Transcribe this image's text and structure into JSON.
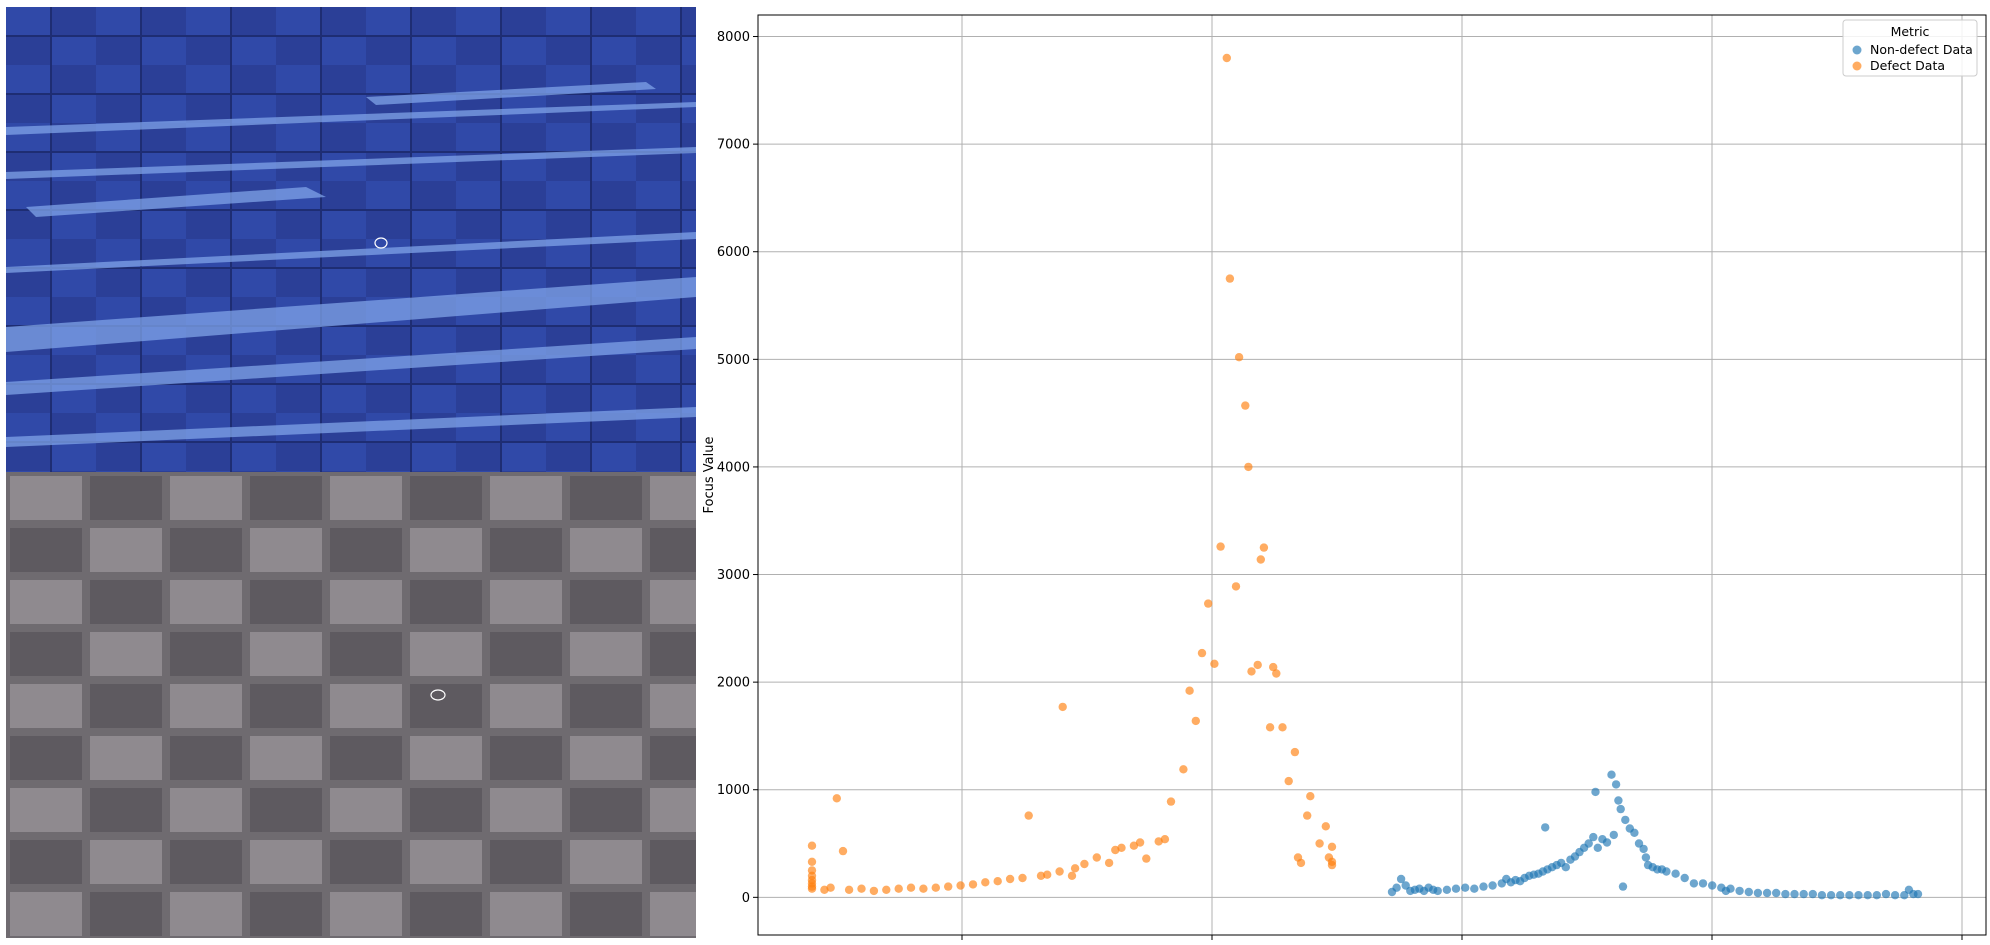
{
  "images": {
    "top": {
      "description_color": "#3553b8"
    },
    "bottom": {
      "description_color": "#9a9497"
    }
  },
  "chart_data": {
    "type": "scatter",
    "title": "",
    "xlabel": "",
    "ylabel": "Focus Value",
    "ylim": [
      -350,
      8200
    ],
    "y_ticks": [
      0,
      1000,
      2000,
      3000,
      4000,
      5000,
      6000,
      7000,
      8000
    ],
    "grid": true,
    "legend": {
      "title": "Metric",
      "placement": "top-right"
    },
    "series": [
      {
        "name": "Non-defect Data",
        "color": "#1f77b4",
        "points": [
          [
            0,
            50
          ],
          [
            1,
            90
          ],
          [
            2,
            170
          ],
          [
            3,
            110
          ],
          [
            4,
            60
          ],
          [
            5,
            70
          ],
          [
            6,
            80
          ],
          [
            7,
            60
          ],
          [
            8,
            90
          ],
          [
            9,
            70
          ],
          [
            10,
            60
          ],
          [
            12,
            70
          ],
          [
            14,
            80
          ],
          [
            16,
            90
          ],
          [
            18,
            80
          ],
          [
            20,
            100
          ],
          [
            22,
            110
          ],
          [
            24,
            130
          ],
          [
            25,
            170
          ],
          [
            26,
            140
          ],
          [
            27,
            160
          ],
          [
            28,
            150
          ],
          [
            29,
            180
          ],
          [
            30,
            200
          ],
          [
            31,
            210
          ],
          [
            32,
            220
          ],
          [
            33,
            240
          ],
          [
            33.5,
            650
          ],
          [
            34,
            260
          ],
          [
            35,
            280
          ],
          [
            36,
            300
          ],
          [
            37,
            320
          ],
          [
            38,
            280
          ],
          [
            39,
            350
          ],
          [
            40,
            380
          ],
          [
            41,
            420
          ],
          [
            42,
            460
          ],
          [
            43,
            500
          ],
          [
            44,
            560
          ],
          [
            44.5,
            980
          ],
          [
            45,
            460
          ],
          [
            46,
            540
          ],
          [
            47,
            510
          ],
          [
            48,
            1140
          ],
          [
            48.5,
            580
          ],
          [
            49,
            1050
          ],
          [
            49.5,
            900
          ],
          [
            50,
            820
          ],
          [
            50.5,
            100
          ],
          [
            51,
            720
          ],
          [
            52,
            640
          ],
          [
            53,
            600
          ],
          [
            54,
            500
          ],
          [
            55,
            450
          ],
          [
            55.5,
            370
          ],
          [
            56,
            300
          ],
          [
            57,
            280
          ],
          [
            58,
            260
          ],
          [
            59,
            260
          ],
          [
            60,
            240
          ],
          [
            62,
            220
          ],
          [
            64,
            180
          ],
          [
            66,
            130
          ],
          [
            68,
            130
          ],
          [
            70,
            110
          ],
          [
            72,
            90
          ],
          [
            73,
            60
          ],
          [
            74,
            80
          ],
          [
            76,
            60
          ],
          [
            78,
            50
          ],
          [
            80,
            40
          ],
          [
            82,
            40
          ],
          [
            84,
            40
          ],
          [
            86,
            30
          ],
          [
            88,
            30
          ],
          [
            90,
            30
          ],
          [
            92,
            30
          ],
          [
            94,
            20
          ],
          [
            96,
            20
          ],
          [
            98,
            20
          ],
          [
            100,
            20
          ],
          [
            102,
            20
          ],
          [
            104,
            20
          ],
          [
            106,
            20
          ],
          [
            108,
            30
          ],
          [
            110,
            20
          ],
          [
            112,
            20
          ],
          [
            113,
            70
          ],
          [
            114,
            30
          ],
          [
            115,
            30
          ]
        ]
      },
      {
        "name": "Defect Data",
        "color": "#ff7f0e",
        "points": [
          [
            0,
            480
          ],
          [
            0,
            330
          ],
          [
            0,
            250
          ],
          [
            0,
            200
          ],
          [
            0,
            160
          ],
          [
            0,
            130
          ],
          [
            0,
            100
          ],
          [
            0,
            80
          ],
          [
            2,
            70
          ],
          [
            3,
            90
          ],
          [
            4,
            920
          ],
          [
            5,
            430
          ],
          [
            6,
            70
          ],
          [
            8,
            80
          ],
          [
            10,
            60
          ],
          [
            12,
            70
          ],
          [
            14,
            80
          ],
          [
            16,
            90
          ],
          [
            18,
            80
          ],
          [
            20,
            90
          ],
          [
            22,
            100
          ],
          [
            24,
            110
          ],
          [
            26,
            120
          ],
          [
            28,
            140
          ],
          [
            30,
            150
          ],
          [
            32,
            170
          ],
          [
            34,
            180
          ],
          [
            35,
            760
          ],
          [
            37,
            200
          ],
          [
            38,
            210
          ],
          [
            40,
            240
          ],
          [
            40.5,
            1770
          ],
          [
            42,
            200
          ],
          [
            42.5,
            270
          ],
          [
            44,
            310
          ],
          [
            46,
            370
          ],
          [
            48,
            320
          ],
          [
            49,
            440
          ],
          [
            50,
            460
          ],
          [
            52,
            480
          ],
          [
            53,
            510
          ],
          [
            54,
            360
          ],
          [
            56,
            520
          ],
          [
            57,
            540
          ],
          [
            58,
            890
          ],
          [
            60,
            1190
          ],
          [
            61,
            1920
          ],
          [
            62,
            1640
          ],
          [
            63,
            2270
          ],
          [
            64,
            2730
          ],
          [
            65,
            2170
          ],
          [
            66,
            3260
          ],
          [
            67,
            7800
          ],
          [
            67.5,
            5750
          ],
          [
            68.5,
            2890
          ],
          [
            69,
            5020
          ],
          [
            70,
            4570
          ],
          [
            70.5,
            4000
          ],
          [
            71,
            2100
          ],
          [
            72,
            2160
          ],
          [
            72.5,
            3140
          ],
          [
            73,
            3250
          ],
          [
            74,
            1580
          ],
          [
            74.5,
            2140
          ],
          [
            75,
            2080
          ],
          [
            76,
            1580
          ],
          [
            77,
            1080
          ],
          [
            78,
            1350
          ],
          [
            78.5,
            370
          ],
          [
            79,
            320
          ],
          [
            80,
            760
          ],
          [
            80.5,
            940
          ],
          [
            82,
            500
          ],
          [
            83,
            660
          ],
          [
            83.5,
            370
          ],
          [
            84,
            470
          ],
          [
            84,
            330
          ],
          [
            84,
            300
          ]
        ]
      }
    ]
  }
}
